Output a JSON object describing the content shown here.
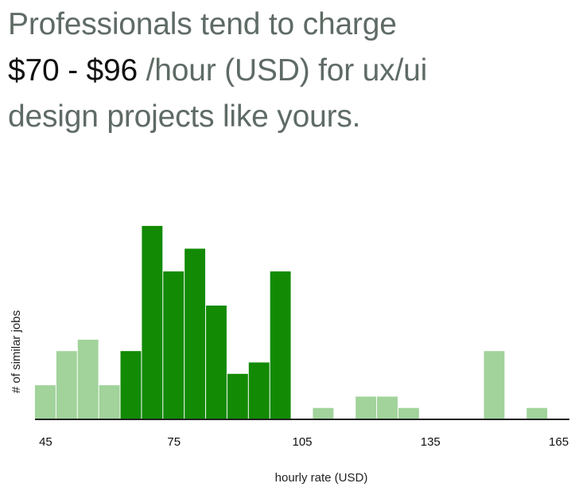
{
  "headline": {
    "line1": "Professionals tend to charge",
    "range": "$70 - $96",
    "rest": " /hour (USD) for ux/ui",
    "line3": "design projects like yours."
  },
  "colors": {
    "highlight": "#128a03",
    "other": "#a1d39b",
    "axis": "#222222"
  },
  "chart_data": {
    "type": "bar",
    "xlabel": "hourly rate (USD)",
    "ylabel": "# of similar jobs",
    "bin_width": 5,
    "xlim": [
      42.5,
      167.5
    ],
    "ylim": [
      0,
      10
    ],
    "xticks": [
      45,
      75,
      105,
      135,
      165
    ],
    "bins": [
      45,
      50,
      55,
      60,
      65,
      70,
      75,
      80,
      85,
      90,
      95,
      100,
      105,
      110,
      115,
      120,
      125,
      130,
      135,
      140,
      145,
      150,
      155,
      160,
      165
    ],
    "values": [
      1.5,
      3,
      3.5,
      1.5,
      3,
      8.5,
      6.5,
      7.5,
      5,
      2,
      2.5,
      6.5,
      0,
      0.5,
      0,
      1,
      1,
      0.5,
      0,
      0,
      0,
      3,
      0,
      0.5,
      0
    ],
    "highlight_range": [
      65,
      100
    ]
  }
}
